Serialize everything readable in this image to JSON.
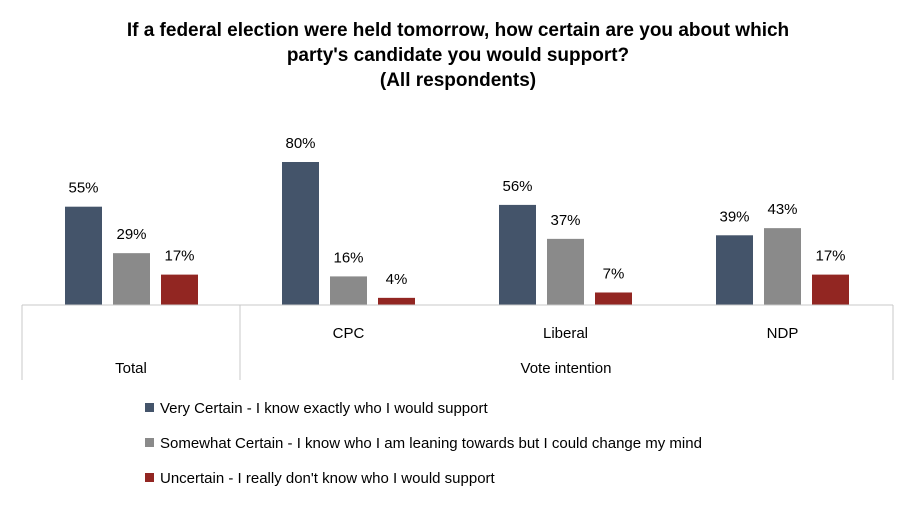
{
  "chart_data": {
    "type": "bar",
    "title_lines": [
      "If a federal election were held tomorrow, how certain are you about which",
      "party's candidate you would support?",
      "(All respondents)"
    ],
    "categories": [
      "Total",
      "CPC",
      "Liberal",
      "NDP"
    ],
    "group_labels": [
      {
        "label": "Total",
        "span": [
          "Total"
        ]
      },
      {
        "label": "Vote intention",
        "span": [
          "CPC",
          "Liberal",
          "NDP"
        ]
      }
    ],
    "series": [
      {
        "name": "Very Certain - I know exactly who I would support",
        "color": "#44546a",
        "values": [
          55,
          80,
          56,
          39
        ]
      },
      {
        "name": "Somewhat Certain - I know who I am leaning towards but I could change my mind",
        "color": "#8a8a8a",
        "values": [
          29,
          16,
          37,
          43
        ]
      },
      {
        "name": "Uncertain - I really don't know who I would support",
        "color": "#922622",
        "values": [
          17,
          4,
          7,
          17
        ]
      }
    ],
    "value_suffix": "%",
    "ylim": [
      0,
      80
    ],
    "grid": false,
    "legend": "bottom"
  }
}
